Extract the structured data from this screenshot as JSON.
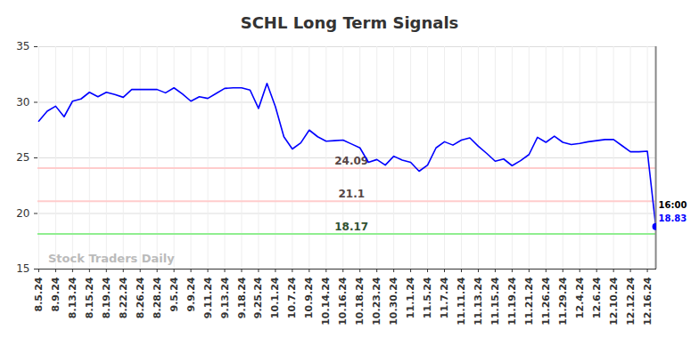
{
  "chart_data": {
    "type": "line",
    "title": "SCHL Long Term Signals",
    "categories": [
      "8.5.24",
      null,
      "8.9.24",
      null,
      "8.13.24",
      null,
      "8.15.24",
      null,
      "8.19.24",
      null,
      "8.22.24",
      null,
      "8.26.24",
      null,
      "8.28.24",
      null,
      "9.5.24",
      null,
      "9.9.24",
      null,
      "9.11.24",
      null,
      "9.13.24",
      null,
      "9.18.24",
      null,
      "9.25.24",
      null,
      "10.1.24",
      null,
      "10.7.24",
      null,
      "10.9.24",
      null,
      "10.14.24",
      null,
      "10.16.24",
      null,
      "10.18.24",
      null,
      "10.23.24",
      null,
      "10.30.24",
      null,
      "11.1.24",
      null,
      "11.5.24",
      null,
      "11.7.24",
      null,
      "11.11.24",
      null,
      "11.13.24",
      null,
      "11.15.24",
      null,
      "11.19.24",
      null,
      "11.21.24",
      null,
      "11.26.24",
      null,
      "11.29.24",
      null,
      "12.4.24",
      null,
      "12.6.24",
      null,
      "12.10.24",
      null,
      "12.12.24",
      null,
      "12.16.24",
      null
    ],
    "series": [
      {
        "color": "#0000ff",
        "values": [
          28.3,
          29.2,
          29.65,
          28.7,
          30.1,
          30.3,
          30.9,
          30.5,
          30.9,
          30.7,
          30.45,
          31.15,
          31.15,
          31.15,
          31.15,
          30.85,
          31.3,
          30.75,
          30.1,
          30.5,
          30.35,
          30.8,
          31.25,
          31.3,
          31.3,
          31.1,
          29.45,
          31.7,
          29.6,
          26.9,
          25.8,
          26.35,
          27.5,
          26.9,
          26.5,
          26.55,
          26.6,
          26.25,
          25.9,
          24.6,
          24.85,
          24.35,
          25.15,
          24.8,
          24.6,
          23.8,
          24.35,
          25.9,
          26.45,
          26.15,
          26.6,
          26.8,
          26.05,
          25.4,
          24.7,
          24.9,
          24.3,
          24.75,
          25.3,
          26.85,
          26.4,
          26.95,
          26.4,
          26.2,
          26.3,
          26.45,
          26.55,
          26.65,
          26.65,
          26.1,
          25.55,
          25.55,
          25.6,
          18.83
        ]
      }
    ],
    "reference_lines": [
      {
        "value": 24.09,
        "color": "#ffcccc"
      },
      {
        "value": 21.1,
        "color": "#ffcccc"
      },
      {
        "value": 18.17,
        "color": "#90ee90"
      }
    ],
    "last_time": "16:00",
    "watermark": "Stock Traders Daily",
    "ylim": [
      15,
      35
    ],
    "yticks": [
      15,
      20,
      25,
      30,
      35
    ],
    "grid": true
  }
}
